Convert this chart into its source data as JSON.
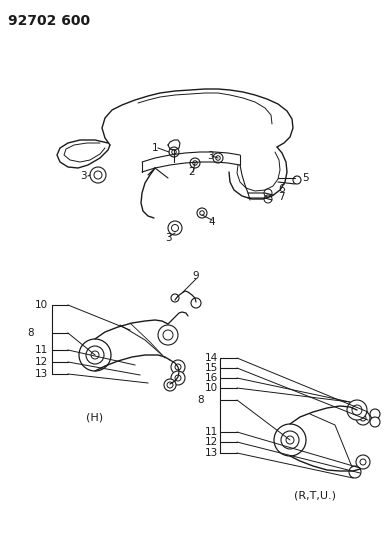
{
  "title_code": "92702 600",
  "bg_color": "#ffffff",
  "line_color": "#1a1a1a",
  "figsize": [
    3.92,
    5.33
  ],
  "dpi": 100,
  "title_fontsize": 10,
  "label_fontsize": 7.5
}
